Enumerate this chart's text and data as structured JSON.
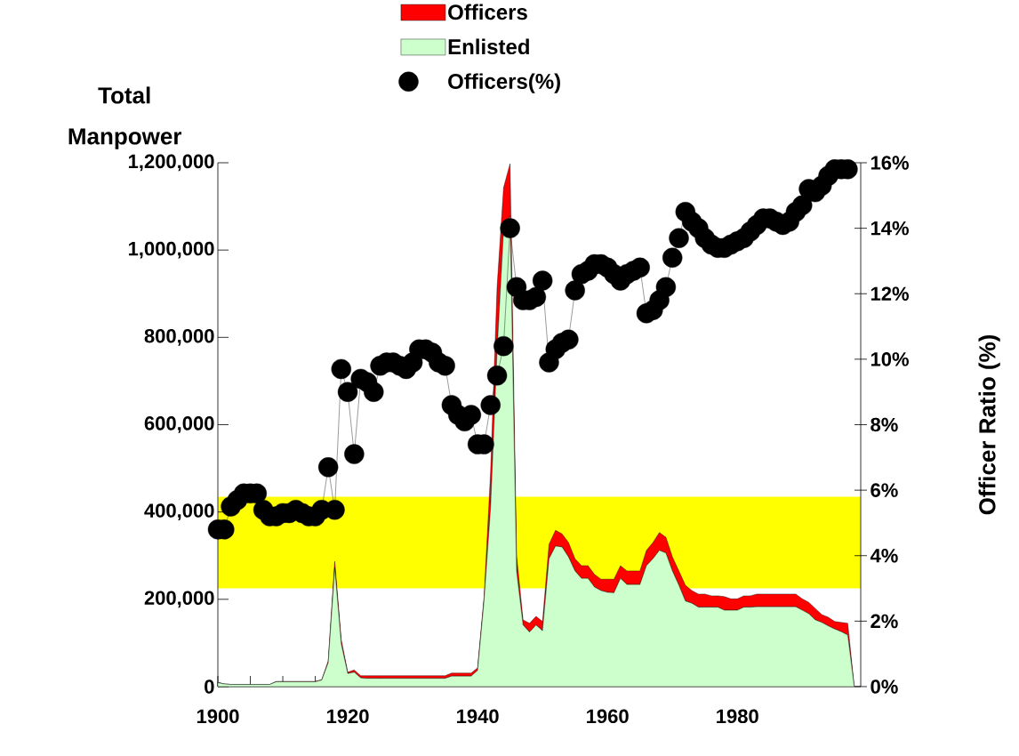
{
  "chart_data": {
    "type": "area",
    "stacked": true,
    "ylabel": "Total Manpower",
    "y2label": "Officer Ratio (%)",
    "x": [
      1900,
      1901,
      1902,
      1903,
      1904,
      1905,
      1906,
      1907,
      1908,
      1909,
      1910,
      1911,
      1912,
      1913,
      1914,
      1915,
      1916,
      1917,
      1918,
      1919,
      1920,
      1921,
      1922,
      1923,
      1924,
      1925,
      1926,
      1927,
      1928,
      1929,
      1930,
      1931,
      1932,
      1933,
      1934,
      1935,
      1936,
      1937,
      1938,
      1939,
      1940,
      1941,
      1942,
      1943,
      1944,
      1945,
      1946,
      1947,
      1948,
      1949,
      1950,
      1951,
      1952,
      1953,
      1954,
      1955,
      1956,
      1957,
      1958,
      1959,
      1960,
      1961,
      1962,
      1963,
      1964,
      1965,
      1966,
      1967,
      1968,
      1969,
      1970,
      1971,
      1972,
      1973,
      1974,
      1975,
      1976,
      1977,
      1978,
      1979,
      1980,
      1981,
      1982,
      1983,
      1984,
      1985,
      1986,
      1987,
      1988,
      1989,
      1990,
      1991,
      1992,
      1993,
      1994,
      1995,
      1996,
      1997,
      1998
    ],
    "series": [
      {
        "name": "Enlisted",
        "color": "#ccffcc",
        "values": [
          9000,
          6000,
          5000,
          5000,
          5000,
          5000,
          5000,
          5000,
          5000,
          11000,
          11000,
          11000,
          11000,
          11000,
          11000,
          11000,
          15000,
          55000,
          272000,
          98000,
          30000,
          33000,
          20000,
          19000,
          19000,
          19000,
          19000,
          19000,
          19000,
          19000,
          19000,
          19000,
          19000,
          19000,
          19000,
          19000,
          24000,
          24000,
          24000,
          24000,
          37000,
          198000,
          410000,
          768000,
          1045000,
          1078000,
          265000,
          141000,
          125000,
          141000,
          128000,
          293000,
          322000,
          320000,
          297000,
          265000,
          248000,
          248000,
          228000,
          220000,
          216000,
          215000,
          248000,
          234000,
          234000,
          234000,
          277000,
          293000,
          312000,
          306000,
          265000,
          232000,
          196000,
          191000,
          182000,
          182000,
          182000,
          182000,
          175000,
          175000,
          175000,
          182000,
          182000,
          183000,
          183000,
          183000,
          183000,
          183000,
          183000,
          183000,
          175000,
          167000,
          153000,
          147000,
          139000,
          132000,
          126000,
          118000,
          0
        ]
      },
      {
        "name": "Officers",
        "color": "#ff0000",
        "values": [
          1000,
          0,
          0,
          0,
          0,
          0,
          0,
          0,
          0,
          1000,
          1000,
          1000,
          1000,
          1000,
          1000,
          1000,
          1000,
          4000,
          15000,
          10000,
          3000,
          5000,
          5000,
          6000,
          6000,
          6000,
          6000,
          6000,
          6000,
          6000,
          6000,
          6000,
          6000,
          6000,
          6000,
          6000,
          7000,
          7000,
          7000,
          7000,
          6000,
          8000,
          81000,
          147000,
          98000,
          120000,
          35000,
          12000,
          20000,
          20000,
          21000,
          33000,
          36000,
          30000,
          33000,
          28000,
          29000,
          29000,
          29000,
          26000,
          30000,
          31000,
          29000,
          31000,
          31000,
          31000,
          35000,
          37000,
          41000,
          36000,
          32000,
          33000,
          36000,
          29000,
          30000,
          30000,
          26000,
          26000,
          31000,
          26000,
          26000,
          26000,
          26000,
          29000,
          29000,
          29000,
          29000,
          29000,
          29000,
          29000,
          26000,
          26000,
          26000,
          18000,
          20000,
          17000,
          21000,
          27000,
          0
        ]
      },
      {
        "name": "Officers(%)",
        "type": "line",
        "axis": "y2",
        "color": "#000000",
        "marker": "circle",
        "x": [
          1900,
          1901,
          1902,
          1903,
          1904,
          1905,
          1906,
          1907,
          1908,
          1909,
          1910,
          1911,
          1912,
          1913,
          1914,
          1915,
          1916,
          1917,
          1918,
          1919,
          1920,
          1921,
          1922,
          1923,
          1924,
          1925,
          1926,
          1927,
          1928,
          1929,
          1930,
          1931,
          1932,
          1933,
          1934,
          1935,
          1936,
          1937,
          1938,
          1939,
          1940,
          1941,
          1942,
          1943,
          1944,
          1945,
          1946,
          1947,
          1948,
          1949,
          1950,
          1951,
          1952,
          1953,
          1954,
          1955,
          1956,
          1957,
          1958,
          1959,
          1960,
          1961,
          1962,
          1963,
          1964,
          1965,
          1966,
          1967,
          1968,
          1969,
          1970,
          1971,
          1972,
          1973,
          1974,
          1975,
          1976,
          1977,
          1978,
          1979,
          1980,
          1981,
          1982,
          1983,
          1984,
          1985,
          1986,
          1987,
          1988,
          1989,
          1990,
          1991,
          1992,
          1993,
          1994,
          1995,
          1996,
          1997
        ],
        "values": [
          4.8,
          4.8,
          5.5,
          5.7,
          5.9,
          5.9,
          5.9,
          5.4,
          5.2,
          5.2,
          5.3,
          5.3,
          5.4,
          5.3,
          5.2,
          5.2,
          5.4,
          6.7,
          5.4,
          9.7,
          9.0,
          7.1,
          9.4,
          9.3,
          9.0,
          9.8,
          9.9,
          9.9,
          9.8,
          9.7,
          9.9,
          10.3,
          10.3,
          10.2,
          9.9,
          9.8,
          8.6,
          8.3,
          8.1,
          8.3,
          7.4,
          7.4,
          8.6,
          9.5,
          10.4,
          14.0,
          12.2,
          11.8,
          11.8,
          11.9,
          12.4,
          9.9,
          10.3,
          10.5,
          10.6,
          12.1,
          12.6,
          12.7,
          12.9,
          12.9,
          12.8,
          12.6,
          12.4,
          12.6,
          12.7,
          12.8,
          11.4,
          11.5,
          11.8,
          12.2,
          13.1,
          13.7,
          14.5,
          14.2,
          14.0,
          13.7,
          13.5,
          13.4,
          13.4,
          13.5,
          13.6,
          13.7,
          13.9,
          14.1,
          14.3,
          14.3,
          14.2,
          14.1,
          14.2,
          14.5,
          14.7,
          15.2,
          15.1,
          15.3,
          15.6,
          15.8,
          15.8,
          15.8
        ]
      }
    ],
    "xlim": [
      1900,
      1999
    ],
    "xticks": [
      1900,
      {
        "value": 1905,
        "label": null
      },
      {
        "value": 1910,
        "label": null
      },
      {
        "value": 1915,
        "label": null
      },
      1920,
      {
        "value": 1925,
        "label": null
      },
      {
        "value": 1930,
        "label": null
      },
      {
        "value": 1935,
        "label": null
      },
      1940,
      {
        "value": 1945,
        "label": null
      },
      {
        "value": 1950,
        "label": null
      },
      {
        "value": 1955,
        "label": null
      },
      1960,
      {
        "value": 1965,
        "label": null
      },
      {
        "value": 1970,
        "label": null
      },
      {
        "value": 1975,
        "label": null
      },
      1980,
      {
        "value": 1985,
        "label": null
      },
      {
        "value": 1990,
        "label": null
      },
      {
        "value": 1995,
        "label": null
      }
    ],
    "ylim": [
      0,
      1200000
    ],
    "yticks": [
      0,
      {
        "value": 200000,
        "label": "200,000"
      },
      {
        "value": 400000,
        "label": "400,000"
      },
      {
        "value": 600000,
        "label": "600,000"
      },
      {
        "value": 800000,
        "label": "800,000"
      },
      {
        "value": 1000000,
        "label": "1,000,000"
      },
      {
        "value": 1200000,
        "label": "1,200,000"
      }
    ],
    "y2lim": [
      0,
      16
    ],
    "y2ticks": [
      {
        "value": 0,
        "label": "0%"
      },
      {
        "value": 2,
        "label": "2%"
      },
      {
        "value": 4,
        "label": "4%"
      },
      {
        "value": 6,
        "label": "6%"
      },
      {
        "value": 8,
        "label": "8%"
      },
      {
        "value": 10,
        "label": "10%"
      },
      {
        "value": 12,
        "label": "12%"
      },
      {
        "value": 14,
        "label": "14%"
      },
      {
        "value": 16,
        "label": "16%"
      }
    ],
    "bands": [
      {
        "axis": "y2",
        "from": 3,
        "to": 5.8,
        "color": "#ffff00"
      }
    ],
    "legend": "top"
  }
}
